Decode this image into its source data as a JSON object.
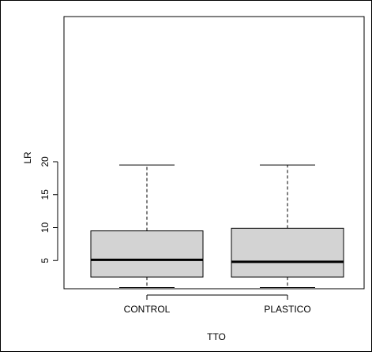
{
  "chart_data": {
    "type": "boxplot",
    "xlabel": "TTO",
    "ylabel": "LR",
    "ylim": [
      0,
      20
    ],
    "yticks": [
      5,
      10,
      15,
      20
    ],
    "grid": false,
    "categories": [
      "CONTROL",
      "PLASTICO"
    ],
    "boxes": [
      {
        "min": 0.9,
        "q1": 2.5,
        "median": 5.1,
        "q3": 9.5,
        "max": 19.5
      },
      {
        "min": 0.9,
        "q1": 2.5,
        "median": 4.8,
        "q3": 9.9,
        "max": 19.5
      }
    ],
    "colors": {
      "box_fill": "#d3d3d3",
      "box_stroke": "#000000",
      "median": "#000000",
      "whisker": "#000000"
    }
  }
}
